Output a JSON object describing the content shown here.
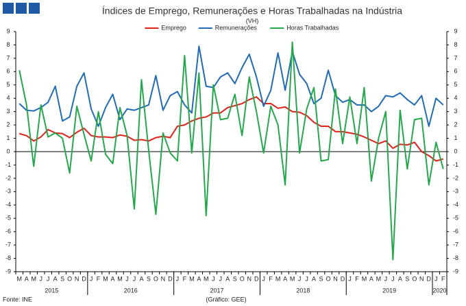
{
  "chart_data": {
    "type": "line",
    "title": "Índices de Emprego, Remunerações e Horas Trabalhadas na Indústria",
    "annotation": "(VH)",
    "source": "Fonte: INE",
    "credit": "(Gráfico: GEE)",
    "categories": [
      "M",
      "A",
      "M",
      "J",
      "J",
      "A",
      "S",
      "O",
      "N",
      "D",
      "J",
      "F",
      "M",
      "A",
      "M",
      "J",
      "J",
      "A",
      "S",
      "O",
      "N",
      "D",
      "J",
      "F",
      "M",
      "A",
      "M",
      "J",
      "J",
      "A",
      "S",
      "O",
      "N",
      "D",
      "J",
      "F",
      "M",
      "A",
      "M",
      "J",
      "J",
      "A",
      "S",
      "O",
      "N",
      "D",
      "J",
      "F",
      "M",
      "A",
      "M",
      "J",
      "J",
      "A",
      "S",
      "O",
      "N",
      "D",
      "J",
      "F"
    ],
    "year_labels": [
      "2015",
      "2016",
      "2017",
      "2018",
      "2019",
      "2020"
    ],
    "series": [
      {
        "name": "Emprego",
        "color": "#e0201b",
        "values": [
          1.35,
          1.2,
          0.8,
          1.1,
          1.65,
          1.4,
          1.35,
          1.05,
          1.45,
          1.75,
          1.2,
          1.1,
          1.1,
          1.05,
          1.25,
          1.15,
          0.85,
          0.9,
          0.8,
          1.05,
          1.15,
          1.05,
          1.9,
          2.0,
          2.3,
          2.5,
          2.6,
          2.9,
          2.9,
          3.3,
          3.45,
          3.6,
          3.9,
          4.1,
          3.6,
          3.6,
          3.25,
          3.35,
          3.0,
          2.95,
          2.7,
          2.2,
          1.9,
          1.9,
          1.5,
          1.5,
          1.4,
          1.3,
          1.1,
          0.85,
          0.6,
          0.8,
          0.25,
          0.55,
          0.5,
          0.7,
          0.0,
          -0.3,
          -0.7,
          -0.55
        ]
      },
      {
        "name": "Remunerações",
        "color": "#1f6bb5",
        "values": [
          3.6,
          3.1,
          3.05,
          3.3,
          3.7,
          4.9,
          2.3,
          2.6,
          4.9,
          5.9,
          3.2,
          1.9,
          3.3,
          4.3,
          2.4,
          3.2,
          3.1,
          3.3,
          3.5,
          5.7,
          3.1,
          4.2,
          4.5,
          3.5,
          2.9,
          7.9,
          4.9,
          4.8,
          5.6,
          5.9,
          5.1,
          6.3,
          7.3,
          5.6,
          3.4,
          4.6,
          7.4,
          4.6,
          7.5,
          5.8,
          5.1,
          3.6,
          4.0,
          6.1,
          4.2,
          3.7,
          3.9,
          3.5,
          3.5,
          3.0,
          3.4,
          4.2,
          4.1,
          4.4,
          3.9,
          3.5,
          4.2,
          1.9,
          4.0,
          3.5
        ]
      },
      {
        "name": "Horas Trabalhadas",
        "color": "#22a84a",
        "axis": "y2",
        "values": [
          6.1,
          3.5,
          -1.1,
          3.5,
          1.1,
          1.4,
          1.0,
          -1.6,
          3.4,
          1.3,
          -0.7,
          3.0,
          -0.2,
          -0.9,
          3.3,
          1.2,
          -4.3,
          5.4,
          0.1,
          -4.7,
          1.4,
          -0.1,
          -0.7,
          7.2,
          -0.1,
          5.9,
          -4.8,
          5.0,
          2.4,
          2.5,
          4.3,
          1.2,
          5.6,
          3.0,
          -0.1,
          3.4,
          2.0,
          -2.5,
          8.2,
          -0.1,
          3.2,
          4.8,
          -0.7,
          -0.6,
          4.7,
          0.6,
          4.1,
          0.6,
          4.8,
          -2.2,
          1.0,
          3.0,
          -8.1,
          3.1,
          -1.3,
          2.4,
          2.5,
          -2.5,
          0.7,
          -1.3
        ]
      }
    ],
    "ylim": [
      -9,
      9
    ],
    "yticks": [
      -9,
      -8,
      -7,
      -6,
      -5,
      -4,
      -3,
      -2,
      -1,
      0,
      1,
      2,
      3,
      4,
      5,
      6,
      7,
      8,
      9
    ],
    "y2lim": [
      -9,
      9
    ],
    "y2ticks": [
      -9,
      -8,
      -7,
      -6,
      -5,
      -4,
      -3,
      -2,
      -1,
      0,
      1,
      2,
      3,
      4,
      5,
      6,
      7,
      8,
      9
    ],
    "legend": "top"
  }
}
